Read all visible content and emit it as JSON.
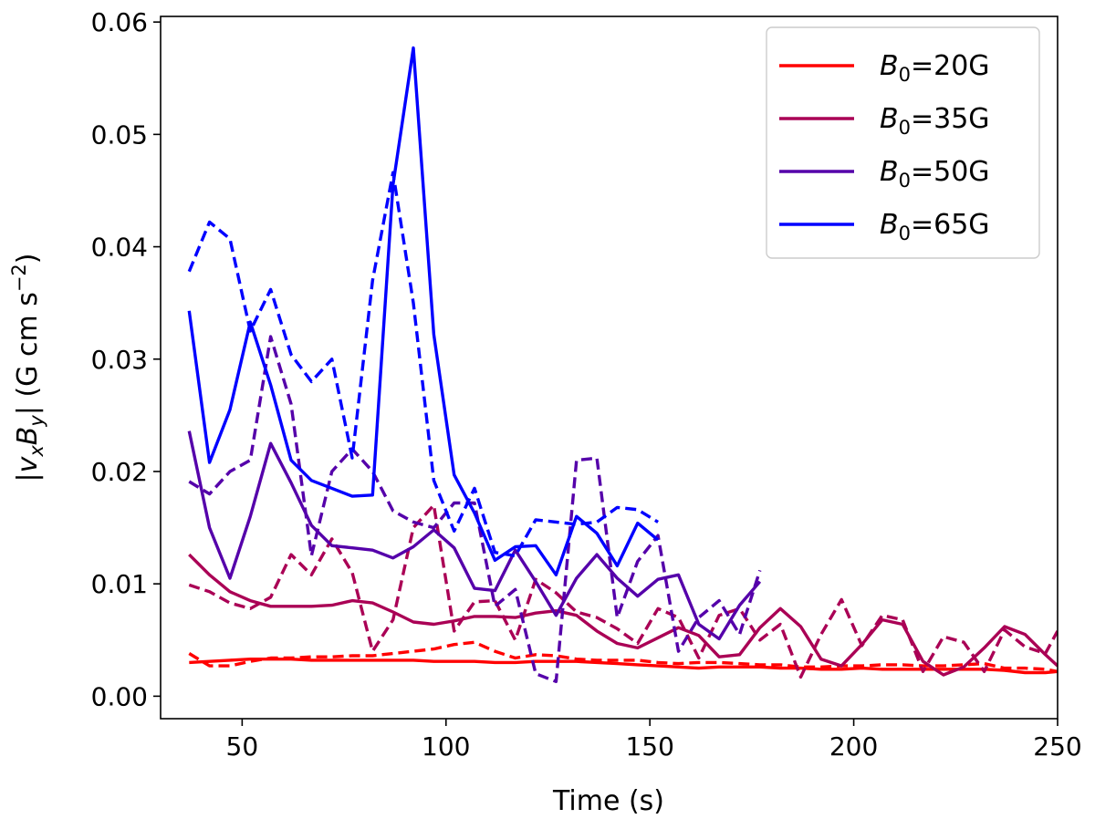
{
  "chart_data": {
    "type": "line",
    "title": "",
    "xlabel": "Time (s)",
    "ylabel": "|v_x B_y| (G cm s^-2)",
    "xlim": [
      30,
      250
    ],
    "ylim": [
      -0.002,
      0.0605
    ],
    "xticks": [
      50,
      100,
      150,
      200,
      250
    ],
    "xtick_labels": [
      "50",
      "100",
      "150",
      "200",
      "250"
    ],
    "yticks": [
      0.0,
      0.01,
      0.02,
      0.03,
      0.04,
      0.05,
      0.06
    ],
    "ytick_labels": [
      "0.00",
      "0.01",
      "0.02",
      "0.03",
      "0.04",
      "0.05",
      "0.06"
    ],
    "legend_position": "top-right",
    "legend": [
      {
        "prefix": "B",
        "sub": "0",
        "suffix": "=20G",
        "color": "#ff0000"
      },
      {
        "prefix": "B",
        "sub": "0",
        "suffix": "=35G",
        "color": "#aa0055"
      },
      {
        "prefix": "B",
        "sub": "0",
        "suffix": "=50G",
        "color": "#5500aa"
      },
      {
        "prefix": "B",
        "sub": "0",
        "suffix": "=65G",
        "color": "#0000ff"
      }
    ],
    "series": [
      {
        "name": "B0=20G solid",
        "color": "#ff0000",
        "style": "solid",
        "x": [
          37,
          42,
          47,
          52,
          57,
          62,
          67,
          72,
          77,
          82,
          87,
          92,
          97,
          102,
          107,
          112,
          117,
          122,
          127,
          132,
          137,
          142,
          147,
          152,
          157,
          162,
          167,
          172,
          177,
          182,
          187,
          192,
          197,
          202,
          207,
          212,
          217,
          222,
          227,
          232,
          237,
          242,
          247,
          250
        ],
        "y": [
          0.003,
          0.0031,
          0.0032,
          0.0033,
          0.0033,
          0.0033,
          0.0032,
          0.0032,
          0.0032,
          0.0032,
          0.0032,
          0.0032,
          0.0031,
          0.0031,
          0.0031,
          0.003,
          0.003,
          0.0031,
          0.0031,
          0.0031,
          0.003,
          0.0029,
          0.0028,
          0.0027,
          0.0026,
          0.0025,
          0.0026,
          0.0026,
          0.0026,
          0.0025,
          0.0025,
          0.0024,
          0.0024,
          0.0025,
          0.0024,
          0.0024,
          0.0024,
          0.0024,
          0.0024,
          0.0024,
          0.0023,
          0.0021,
          0.0021,
          0.0022
        ]
      },
      {
        "name": "B0=20G dashed",
        "color": "#ff0000",
        "style": "dashed",
        "x": [
          37,
          42,
          47,
          52,
          57,
          62,
          67,
          72,
          77,
          82,
          87,
          92,
          97,
          102,
          107,
          112,
          117,
          122,
          127,
          132,
          137,
          142,
          147,
          152,
          157,
          162,
          167,
          172,
          177,
          182,
          187,
          192,
          197,
          202,
          207,
          212,
          217,
          222,
          227,
          232,
          237,
          242,
          247,
          250
        ],
        "y": [
          0.0038,
          0.0027,
          0.0027,
          0.0031,
          0.0034,
          0.0034,
          0.0035,
          0.0035,
          0.0036,
          0.0036,
          0.0038,
          0.004,
          0.0042,
          0.0046,
          0.0048,
          0.004,
          0.0034,
          0.0037,
          0.0036,
          0.0033,
          0.0032,
          0.0032,
          0.0032,
          0.003,
          0.0029,
          0.003,
          0.003,
          0.0029,
          0.0028,
          0.0028,
          0.0026,
          0.0026,
          0.0027,
          0.0027,
          0.0028,
          0.0028,
          0.0027,
          0.0027,
          0.0028,
          0.0029,
          0.0025,
          0.0025,
          0.0024,
          0.0022
        ]
      },
      {
        "name": "B0=35G solid",
        "color": "#aa0055",
        "style": "solid",
        "x": [
          37,
          42,
          47,
          52,
          57,
          62,
          67,
          72,
          77,
          82,
          87,
          92,
          97,
          102,
          107,
          112,
          117,
          122,
          127,
          132,
          137,
          142,
          147,
          152,
          157,
          162,
          167,
          172,
          177,
          182,
          187,
          192,
          197,
          202,
          207,
          212,
          217,
          222,
          227,
          232,
          237,
          242,
          247,
          250
        ],
        "y": [
          0.0126,
          0.0108,
          0.0093,
          0.0085,
          0.008,
          0.008,
          0.008,
          0.0081,
          0.0085,
          0.0083,
          0.0075,
          0.0066,
          0.0064,
          0.0067,
          0.0071,
          0.0071,
          0.007,
          0.0074,
          0.0076,
          0.0072,
          0.0058,
          0.0047,
          0.0043,
          0.0052,
          0.0061,
          0.0054,
          0.0035,
          0.0037,
          0.0061,
          0.0078,
          0.0062,
          0.0033,
          0.0027,
          0.0046,
          0.0068,
          0.0064,
          0.0031,
          0.0019,
          0.0026,
          0.0043,
          0.0062,
          0.0055,
          0.0037,
          0.0027
        ]
      },
      {
        "name": "B0=35G dashed",
        "color": "#aa0055",
        "style": "dashed",
        "x": [
          37,
          42,
          47,
          52,
          57,
          62,
          67,
          72,
          77,
          82,
          87,
          92,
          97,
          102,
          107,
          112,
          117,
          122,
          127,
          132,
          137,
          142,
          147,
          152,
          157,
          162,
          167,
          172,
          177,
          182,
          187,
          192,
          197,
          202,
          207,
          212,
          217,
          222,
          227,
          232,
          237,
          242,
          247,
          250
        ],
        "y": [
          0.0099,
          0.0093,
          0.0083,
          0.0078,
          0.0088,
          0.0126,
          0.0108,
          0.014,
          0.011,
          0.004,
          0.0068,
          0.015,
          0.017,
          0.0058,
          0.0084,
          0.0085,
          0.005,
          0.0104,
          0.0092,
          0.0075,
          0.007,
          0.006,
          0.0047,
          0.0078,
          0.007,
          0.0034,
          0.0072,
          0.0078,
          0.005,
          0.0064,
          0.0017,
          0.0055,
          0.0086,
          0.0045,
          0.0072,
          0.0068,
          0.0022,
          0.0053,
          0.0048,
          0.0022,
          0.0059,
          0.0044,
          0.0038,
          0.0058
        ]
      },
      {
        "name": "B0=50G solid",
        "color": "#5500aa",
        "style": "solid",
        "x": [
          37,
          42,
          47,
          52,
          57,
          62,
          67,
          72,
          77,
          82,
          87,
          92,
          97,
          102,
          107,
          112,
          117,
          122,
          127,
          132,
          137,
          142,
          147,
          152,
          157,
          162,
          167,
          172,
          177
        ],
        "y": [
          0.0236,
          0.015,
          0.0105,
          0.016,
          0.0225,
          0.019,
          0.0152,
          0.0134,
          0.0132,
          0.013,
          0.0123,
          0.0133,
          0.0148,
          0.0132,
          0.0096,
          0.0094,
          0.013,
          0.0102,
          0.0072,
          0.0105,
          0.0126,
          0.0105,
          0.0089,
          0.0104,
          0.0108,
          0.0064,
          0.0051,
          0.0081,
          0.0102
        ]
      },
      {
        "name": "B0=50G dashed",
        "color": "#5500aa",
        "style": "dashed",
        "x": [
          37,
          42,
          47,
          52,
          57,
          62,
          67,
          72,
          77,
          82,
          87,
          92,
          97,
          102,
          107,
          112,
          117,
          122,
          127,
          132,
          137,
          142,
          147,
          152,
          157,
          162,
          167,
          172,
          177
        ],
        "y": [
          0.0191,
          0.018,
          0.02,
          0.021,
          0.032,
          0.026,
          0.0125,
          0.02,
          0.022,
          0.02,
          0.0165,
          0.0155,
          0.015,
          0.0172,
          0.0172,
          0.008,
          0.0095,
          0.002,
          0.0013,
          0.021,
          0.0212,
          0.007,
          0.012,
          0.0143,
          0.004,
          0.007,
          0.0085,
          0.0055,
          0.0112
        ]
      },
      {
        "name": "B0=65G solid",
        "color": "#0000ff",
        "style": "solid",
        "x": [
          37,
          42,
          47,
          52,
          57,
          62,
          67,
          72,
          77,
          82,
          87,
          92,
          97,
          102,
          107,
          112,
          117,
          122,
          127,
          132,
          137,
          142,
          147,
          152
        ],
        "y": [
          0.0343,
          0.0208,
          0.0255,
          0.0333,
          0.0277,
          0.021,
          0.0192,
          0.0185,
          0.0178,
          0.0179,
          0.0455,
          0.0577,
          0.0322,
          0.0197,
          0.0163,
          0.0121,
          0.0133,
          0.0134,
          0.0108,
          0.016,
          0.0145,
          0.0116,
          0.0154,
          0.0139
        ]
      },
      {
        "name": "B0=65G dashed",
        "color": "#0000ff",
        "style": "dashed",
        "x": [
          37,
          42,
          47,
          52,
          57,
          62,
          67,
          72,
          77,
          82,
          87,
          92,
          97,
          102,
          107,
          112,
          117,
          122,
          127,
          132,
          137,
          142,
          147,
          152
        ],
        "y": [
          0.0378,
          0.0422,
          0.0407,
          0.0325,
          0.0362,
          0.0304,
          0.028,
          0.03,
          0.0212,
          0.037,
          0.0466,
          0.035,
          0.0192,
          0.0147,
          0.0185,
          0.0128,
          0.0125,
          0.0157,
          0.0155,
          0.0153,
          0.0155,
          0.0168,
          0.0166,
          0.0155
        ]
      }
    ]
  }
}
